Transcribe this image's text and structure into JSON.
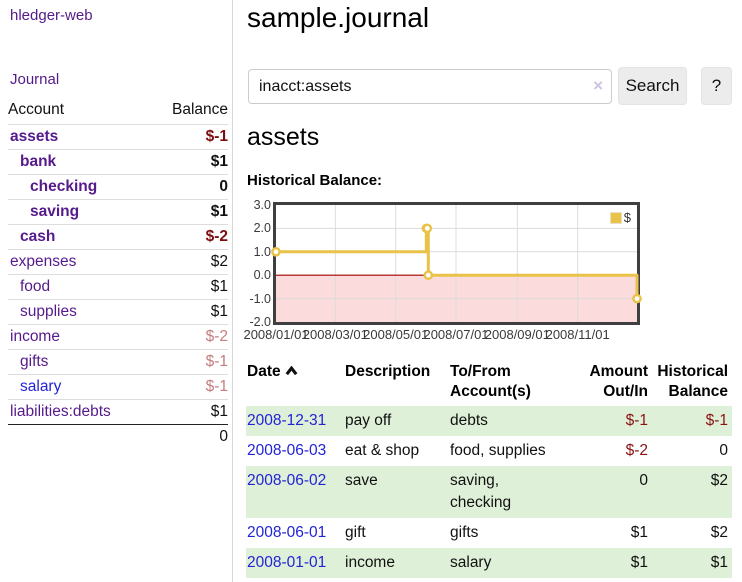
{
  "colors": {
    "link_purple": "#551a8b",
    "link_blue": "#2323d6",
    "neg_strong": "#7d0d0d",
    "neg_soft": "#c47d7d",
    "text": "#111111",
    "row_green": "#dff0d8",
    "chart_gold": "#e9c248"
  },
  "sidebar": {
    "brand": "hledger-web",
    "journal_link": "Journal",
    "accounts_table": {
      "headers": {
        "account": "Account",
        "balance": "Balance"
      },
      "rows": [
        {
          "name": "assets",
          "indent": 1,
          "bold": true,
          "name_color": "#551a8b",
          "balance": "$-1",
          "balance_color": "#7d0d0d",
          "balance_bold": true
        },
        {
          "name": "bank",
          "indent": 2,
          "bold": true,
          "name_color": "#551a8b",
          "balance": "$1",
          "balance_color": "#111111",
          "balance_bold": true
        },
        {
          "name": "checking",
          "indent": 3,
          "bold": true,
          "name_color": "#551a8b",
          "balance": "0",
          "balance_color": "#111111",
          "balance_bold": true
        },
        {
          "name": "saving",
          "indent": 3,
          "bold": true,
          "name_color": "#551a8b",
          "balance": "$1",
          "balance_color": "#111111",
          "balance_bold": true
        },
        {
          "name": "cash",
          "indent": 2,
          "bold": true,
          "name_color": "#551a8b",
          "balance": "$-2",
          "balance_color": "#7d0d0d",
          "balance_bold": true
        },
        {
          "name": "expenses",
          "indent": 1,
          "bold": false,
          "name_color": "#551a8b",
          "balance": "$2",
          "balance_color": "#111111",
          "balance_bold": false
        },
        {
          "name": "food",
          "indent": 2,
          "bold": false,
          "name_color": "#551a8b",
          "balance": "$1",
          "balance_color": "#111111",
          "balance_bold": false
        },
        {
          "name": "supplies",
          "indent": 2,
          "bold": false,
          "name_color": "#551a8b",
          "balance": "$1",
          "balance_color": "#111111",
          "balance_bold": false
        },
        {
          "name": "income",
          "indent": 1,
          "bold": false,
          "name_color": "#551a8b",
          "balance": "$-2",
          "balance_color": "#c47d7d",
          "balance_bold": false
        },
        {
          "name": "gifts",
          "indent": 2,
          "bold": false,
          "name_color": "#551a8b",
          "balance": "$-1",
          "balance_color": "#c47d7d",
          "balance_bold": false
        },
        {
          "name": "salary",
          "indent": 2,
          "bold": false,
          "name_color": "#2323d6",
          "balance": "$-1",
          "balance_color": "#c47d7d",
          "balance_bold": false
        },
        {
          "name": "liabilities:debts",
          "indent": 1,
          "bold": false,
          "name_color": "#551a8b",
          "balance": "$1",
          "balance_color": "#111111",
          "balance_bold": false,
          "last": true
        }
      ],
      "total": "0"
    }
  },
  "header": {
    "title": "sample.journal"
  },
  "search": {
    "value": "inacct:assets",
    "clear_icon": "×",
    "button_label": "Search",
    "help_label": "?"
  },
  "account_page": {
    "title": "assets",
    "chart_label": "Historical Balance:"
  },
  "chart_data": {
    "type": "line",
    "step": true,
    "title": "Historical Balance",
    "xlim": [
      "2008-01-01",
      "2008-12-31"
    ],
    "ylim": [
      -2,
      3
    ],
    "x_ticks": [
      {
        "date": "2008-01-01",
        "label": "2008/01/01"
      },
      {
        "date": "2008-03-01",
        "label": "2008/03/01"
      },
      {
        "date": "2008-05-01",
        "label": "2008/05/01"
      },
      {
        "date": "2008-07-01",
        "label": "2008/07/01"
      },
      {
        "date": "2008-09-01",
        "label": "2008/09/01"
      },
      {
        "date": "2008-11-01",
        "label": "2008/11/01"
      }
    ],
    "y_ticks": [
      {
        "value": 3,
        "label": "3.0"
      },
      {
        "value": 2,
        "label": "2.0"
      },
      {
        "value": 1,
        "label": "1.0"
      },
      {
        "value": 0,
        "label": "0.0"
      },
      {
        "value": -1,
        "label": "-1.0"
      },
      {
        "value": -2,
        "label": "-2.0"
      }
    ],
    "series": [
      {
        "name": "$",
        "color": "#e9c248",
        "points": [
          [
            "2008-01-01",
            1
          ],
          [
            "2008-06-01",
            2
          ],
          [
            "2008-06-02",
            2
          ],
          [
            "2008-06-03",
            0
          ],
          [
            "2008-12-31",
            -1
          ]
        ]
      }
    ],
    "legend": {
      "label": "$",
      "swatch_color": "#e9c248",
      "position": "top-right"
    },
    "grid": true,
    "grid_color": "#dcdcdc",
    "negative_fill": "#fbdbdb",
    "zero_line_color": "#a40000",
    "border_color": "#3f3f3f"
  },
  "transactions": {
    "headers": {
      "date": "Date",
      "description": "Description",
      "tofrom": [
        "To/From",
        "Account(s)"
      ],
      "amount": [
        "Amount",
        "Out/In"
      ],
      "historical": [
        "Historical",
        "Balance"
      ]
    },
    "sort": {
      "column": "date",
      "direction": "asc"
    },
    "rows": [
      {
        "date": "2008-12-31",
        "description": "pay off",
        "accounts": [
          "debts"
        ],
        "amount": "$-1",
        "amount_neg": true,
        "balance": "$-1",
        "balance_neg": true,
        "shaded": true
      },
      {
        "date": "2008-06-03",
        "description": "eat & shop",
        "accounts": [
          "food, supplies"
        ],
        "amount": "$-2",
        "amount_neg": true,
        "balance": "0",
        "balance_neg": false,
        "shaded": false
      },
      {
        "date": "2008-06-02",
        "description": "save",
        "accounts": [
          "saving,",
          "checking"
        ],
        "amount": "0",
        "amount_neg": false,
        "balance": "$2",
        "balance_neg": false,
        "shaded": true
      },
      {
        "date": "2008-06-01",
        "description": "gift",
        "accounts": [
          "gifts"
        ],
        "amount": "$1",
        "amount_neg": false,
        "balance": "$2",
        "balance_neg": false,
        "shaded": false
      },
      {
        "date": "2008-01-01",
        "description": "income",
        "accounts": [
          "salary"
        ],
        "amount": "$1",
        "amount_neg": false,
        "balance": "$1",
        "balance_neg": false,
        "shaded": true
      }
    ]
  }
}
